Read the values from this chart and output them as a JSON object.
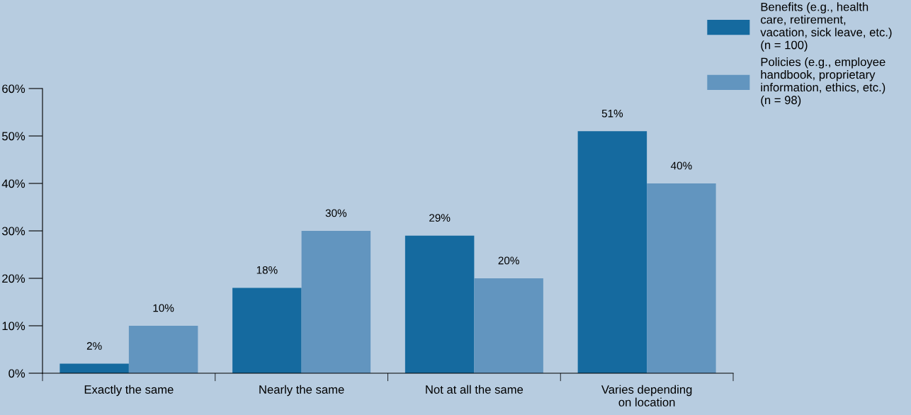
{
  "chart_data": {
    "type": "bar",
    "categories": [
      "Exactly the same",
      "Nearly the same",
      "Not at all the same",
      "Varies depending\non location"
    ],
    "series": [
      {
        "name": "Benefits (e.g., health\ncare, retirement,\nvacation, sick leave, etc.)\n(n = 100)",
        "color": "#156a9f",
        "values": [
          2,
          18,
          29,
          51
        ],
        "value_labels": [
          "2%",
          "18%",
          "29%",
          "51%"
        ]
      },
      {
        "name": "Policies (e.g., employee\nhandbook, proprietary\ninformation, ethics, etc.)\n(n = 98)",
        "color": "#6295bf",
        "values": [
          10,
          30,
          20,
          40
        ],
        "value_labels": [
          "10%",
          "30%",
          "20%",
          "40%"
        ]
      }
    ],
    "ylim": [
      0,
      60
    ],
    "yticks": [
      {
        "value": 0,
        "label": "0%"
      },
      {
        "value": 10,
        "label": "10%"
      },
      {
        "value": 20,
        "label": "20%"
      },
      {
        "value": 30,
        "label": "30%"
      },
      {
        "value": 40,
        "label": "40%"
      },
      {
        "value": 50,
        "label": "50%"
      },
      {
        "value": 60,
        "label": "60%"
      }
    ],
    "grid": false,
    "legend": "top right"
  }
}
